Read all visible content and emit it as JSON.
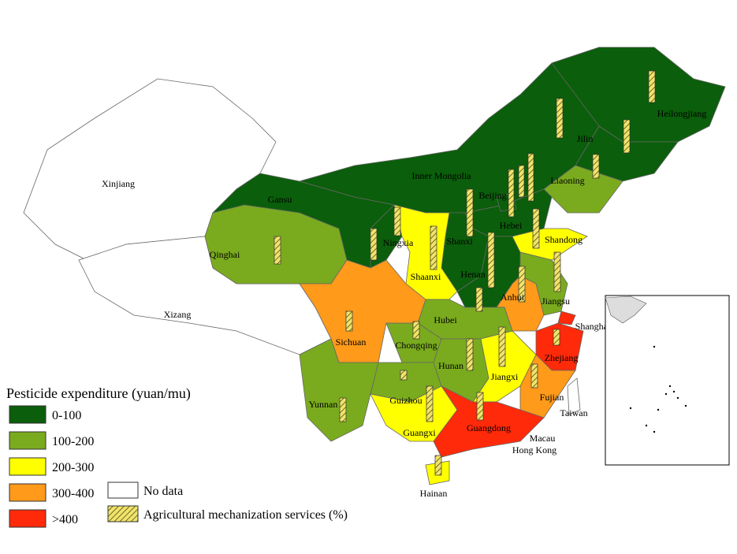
{
  "legend": {
    "title": "Pesticide expenditure (yuan/mu)",
    "classes": [
      {
        "label": "0-100",
        "color": "#0b5e0b"
      },
      {
        "label": "100-200",
        "color": "#7aab1e"
      },
      {
        "label": "200-300",
        "color": "#ffff00"
      },
      {
        "label": "300-400",
        "color": "#ff9a1a"
      },
      {
        "label": ">400",
        "color": "#ff2a0a"
      }
    ],
    "no_data": {
      "label": "No data",
      "color": "#ffffff"
    },
    "hatch_label": "Agricultural mechanization services (%)"
  },
  "provinces": [
    {
      "name": "Xinjiang",
      "class": null
    },
    {
      "name": "Xizang",
      "class": null
    },
    {
      "name": "Qinghai",
      "class": 1
    },
    {
      "name": "Gansu",
      "class": 0
    },
    {
      "name": "Inner Mongolia",
      "class": 0
    },
    {
      "name": "Heilongjiang",
      "class": 0
    },
    {
      "name": "Jilin",
      "class": 0
    },
    {
      "name": "Liaoning",
      "class": 1
    },
    {
      "name": "Hebei",
      "class": 0
    },
    {
      "name": "Beijing",
      "class": 0
    },
    {
      "name": "Shanxi",
      "class": 0
    },
    {
      "name": "Ningxia",
      "class": 0
    },
    {
      "name": "Shaanxi",
      "class": 2
    },
    {
      "name": "Henan",
      "class": 0
    },
    {
      "name": "Shandong",
      "class": 2
    },
    {
      "name": "Jiangsu",
      "class": 1
    },
    {
      "name": "Anhui",
      "class": 3
    },
    {
      "name": "Shanghai",
      "class": 4
    },
    {
      "name": "Zhejiang",
      "class": 4
    },
    {
      "name": "Hubei",
      "class": 1
    },
    {
      "name": "Chongqing",
      "class": 1
    },
    {
      "name": "Sichuan",
      "class": 3
    },
    {
      "name": "Guizhou",
      "class": 1
    },
    {
      "name": "Yunnan",
      "class": 1
    },
    {
      "name": "Hunan",
      "class": 1
    },
    {
      "name": "Jiangxi",
      "class": 2
    },
    {
      "name": "Fujian",
      "class": 3
    },
    {
      "name": "Guangxi",
      "class": 2
    },
    {
      "name": "Guangdong",
      "class": 4
    },
    {
      "name": "Hainan",
      "class": 2
    },
    {
      "name": "Taiwan",
      "class": null
    },
    {
      "name": "Macau",
      "class": null
    },
    {
      "name": "Hong Kong",
      "class": null
    }
  ]
}
